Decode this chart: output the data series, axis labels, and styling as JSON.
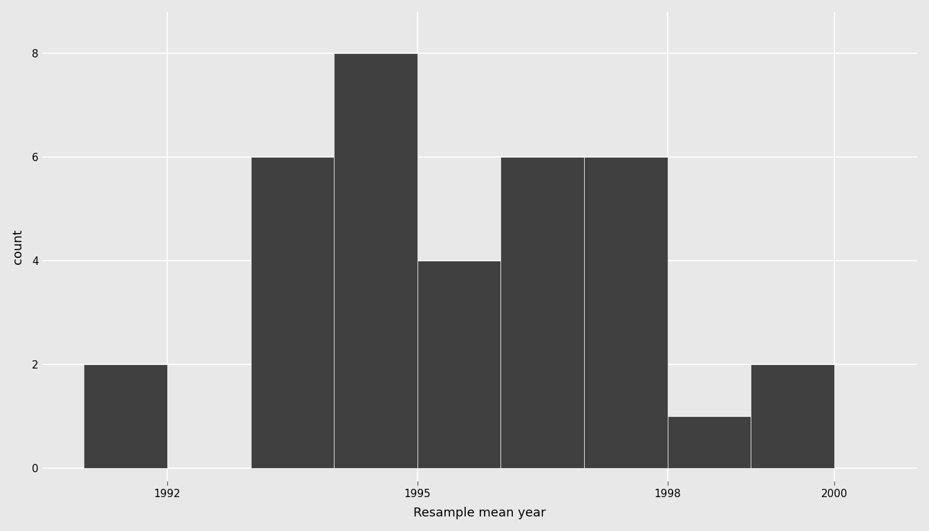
{
  "title": "",
  "xlabel": "Resample mean year",
  "ylabel": "count",
  "bar_color": "#404040",
  "background_color": "#e8e8e8",
  "panel_background": "#e8e8e8",
  "grid_color": "#ffffff",
  "bar_edge_color": "#ffffff",
  "bin_edges": [
    1991,
    1992,
    1993,
    1994,
    1995,
    1996,
    1997,
    1998,
    1999,
    2000
  ],
  "counts": [
    2,
    0,
    6,
    8,
    4,
    6,
    6,
    1,
    2
  ],
  "yticks": [
    0,
    2,
    4,
    6,
    8
  ],
  "xticks": [
    1992,
    1995,
    1998,
    2000
  ],
  "ylim": [
    -0.25,
    8.8
  ],
  "xlim": [
    1990.5,
    2001.0
  ],
  "xlabel_fontsize": 13,
  "ylabel_fontsize": 13,
  "tick_fontsize": 11,
  "bar_linewidth": 0.5,
  "grid_linewidth": 1.2
}
